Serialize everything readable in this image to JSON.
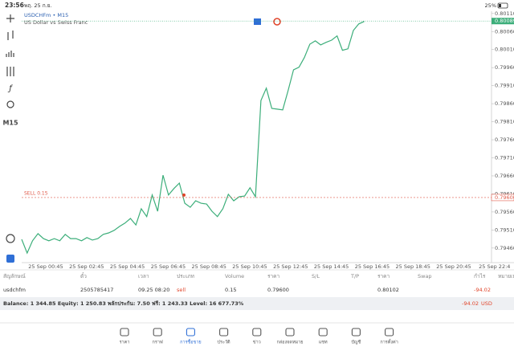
{
  "status_bar": {
    "time": "23:56",
    "date": "พฤ. 25 ก.ย.",
    "battery": "25%"
  },
  "chart": {
    "type": "line",
    "symbol": "USDCHFm • M15",
    "description": "US Dollar vs Swiss Franc",
    "timeframe": "M15",
    "color": "#3cae7a",
    "values": [
      0.79484,
      0.79446,
      0.7948,
      0.795,
      0.79486,
      0.7948,
      0.79486,
      0.7948,
      0.79498,
      0.79486,
      0.79486,
      0.7948,
      0.79489,
      0.79482,
      0.79486,
      0.79498,
      0.79502,
      0.79509,
      0.7952,
      0.79529,
      0.79542,
      0.79524,
      0.79569,
      0.79547,
      0.79607,
      0.79562,
      0.79662,
      0.79607,
      0.79625,
      0.7964,
      0.79584,
      0.79573,
      0.79591,
      0.79584,
      0.79582,
      0.79562,
      0.79547,
      0.79569,
      0.79609,
      0.79591,
      0.79602,
      0.79604,
      0.79627,
      0.79602,
      0.79869,
      0.79903,
      0.79847,
      0.79845,
      0.79843,
      0.79896,
      0.79954,
      0.79961,
      0.79988,
      0.80025,
      0.80034,
      0.80023,
      0.8003,
      0.80036,
      0.80048,
      0.80008,
      0.80012,
      0.80063,
      0.80081,
      0.80088
    ],
    "ylim": [
      0.79424,
      0.80114
    ],
    "yticks": [
      {
        "value": 0.8011,
        "label": "0.80110"
      },
      {
        "value": 0.8006,
        "label": "0.80060"
      },
      {
        "value": 0.8001,
        "label": "0.80010"
      },
      {
        "value": 0.7996,
        "label": "0.79960"
      },
      {
        "value": 0.7991,
        "label": "0.79910"
      },
      {
        "value": 0.7986,
        "label": "0.79860"
      },
      {
        "value": 0.7981,
        "label": "0.79810"
      },
      {
        "value": 0.7976,
        "label": "0.79760"
      },
      {
        "value": 0.7971,
        "label": "0.79710"
      },
      {
        "value": 0.7966,
        "label": "0.79660"
      },
      {
        "value": 0.7961,
        "label": "0.79610"
      },
      {
        "value": 0.7956,
        "label": "0.79560"
      },
      {
        "value": 0.7951,
        "label": "0.79510"
      },
      {
        "value": 0.7946,
        "label": "0.79460"
      }
    ],
    "current_price": {
      "value": 0.80089,
      "label": "0.80089"
    },
    "sell_line": {
      "label": "SELL 0.15",
      "price": {
        "value": 0.796,
        "label": "0.79600"
      }
    },
    "x_labels": [
      "25 Sep 00:45",
      "25 Sep 02:45",
      "25 Sep 04:45",
      "25 Sep 06:45",
      "25 Sep 08:45",
      "25 Sep 10:45",
      "25 Sep 12:45",
      "25 Sep 14:45",
      "25 Sep 16:45",
      "25 Sep 18:45",
      "25 Sep 20:45",
      "25 Sep 22:4"
    ]
  },
  "positions": {
    "columns": [
      "สัญลักษณ์",
      "ตั๋ว",
      "เวลา",
      "ประเภท",
      "Volume",
      "ราคา",
      "S/L",
      "T/P",
      "ราคา",
      "Swap",
      "กำไร",
      "หมายเหตุ"
    ],
    "rows": [
      [
        "usdchfm",
        "2505785417",
        "09.25 08:20",
        "sell",
        "0.15",
        "0.79600",
        "",
        "",
        "0.80102",
        "",
        "-94.02",
        ""
      ]
    ]
  },
  "account": {
    "summary": "Balance: 1 344.85 Equity: 1 250.83 พลักประกัน: 7.50 ฟรี: 1 243.33 Level: 16 677.73%",
    "profit": "-94.02",
    "currency": "USD"
  },
  "nav": [
    "ราคา",
    "กราฟ",
    "การซื้อขาย",
    "ประวัติ",
    "ข่าว",
    "กล่องจดหมาย",
    "แชท",
    "บัญชี",
    "การตั้งค่า"
  ]
}
